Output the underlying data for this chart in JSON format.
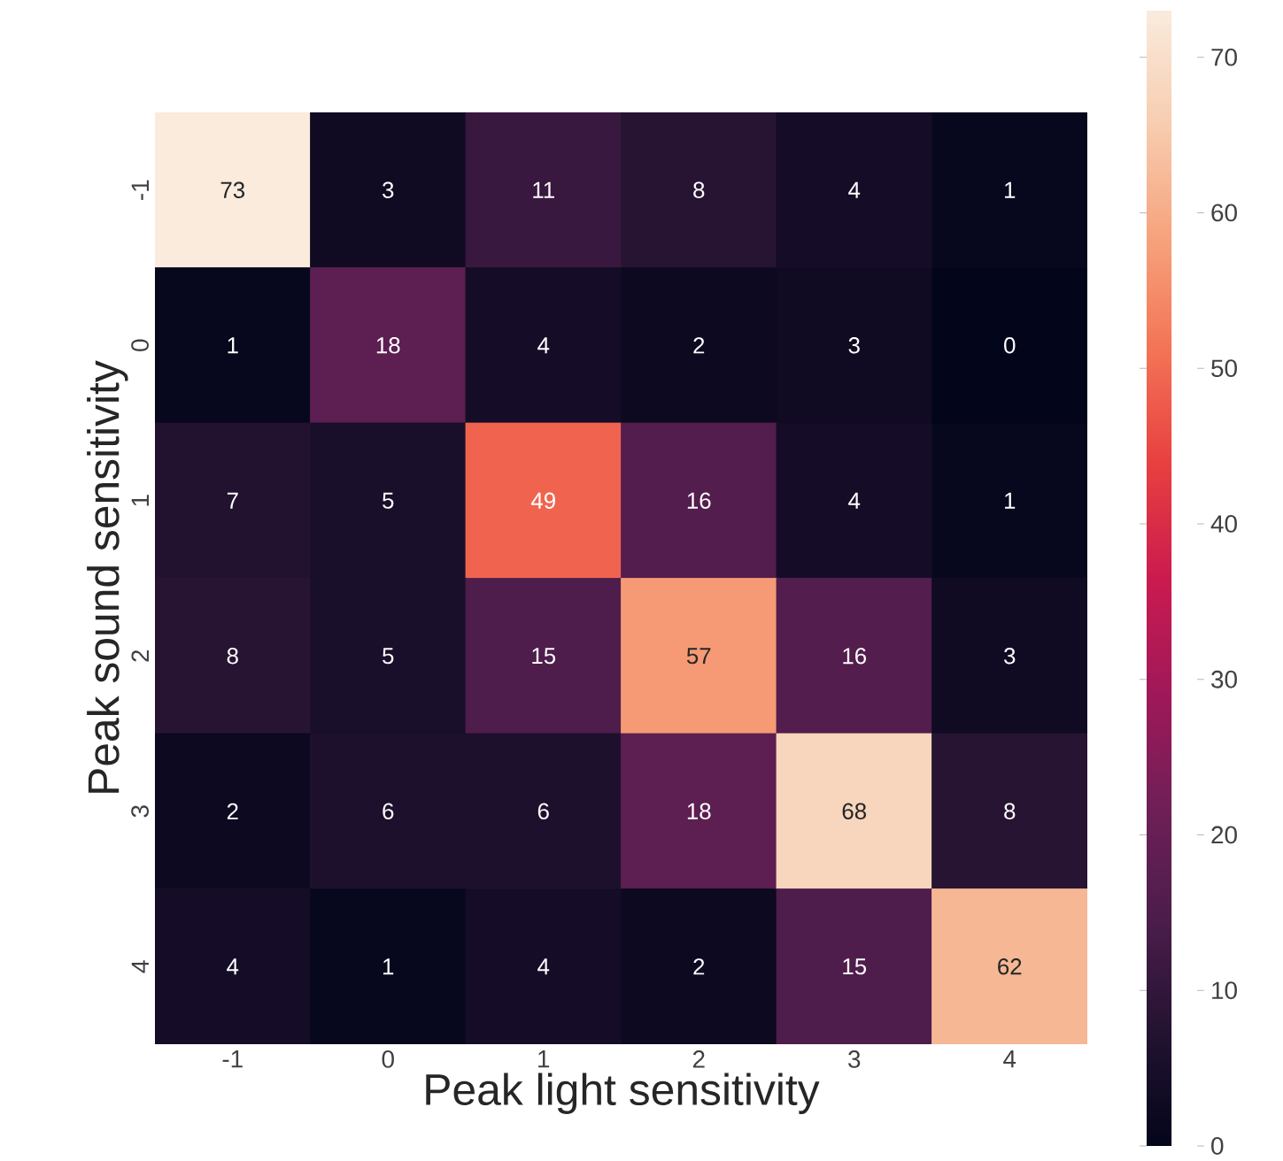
{
  "chart_data": {
    "type": "heatmap",
    "xlabel": "Peak light sensitivity",
    "ylabel": "Peak sound sensitivity",
    "categories": [
      "-1",
      "0",
      "1",
      "2",
      "3",
      "4"
    ],
    "y_categories": [
      "-1",
      "0",
      "1",
      "2",
      "3",
      "4"
    ],
    "cells": [
      [
        73,
        3,
        11,
        8,
        4,
        1
      ],
      [
        1,
        18,
        4,
        2,
        3,
        0
      ],
      [
        7,
        5,
        49,
        16,
        4,
        1
      ],
      [
        8,
        5,
        15,
        57,
        16,
        3
      ],
      [
        2,
        6,
        6,
        18,
        68,
        8
      ],
      [
        4,
        1,
        4,
        2,
        15,
        62
      ]
    ],
    "data_labels": true,
    "clim": [
      0,
      73
    ],
    "cticks": [
      0,
      10,
      20,
      30,
      40,
      50,
      60,
      70
    ]
  }
}
